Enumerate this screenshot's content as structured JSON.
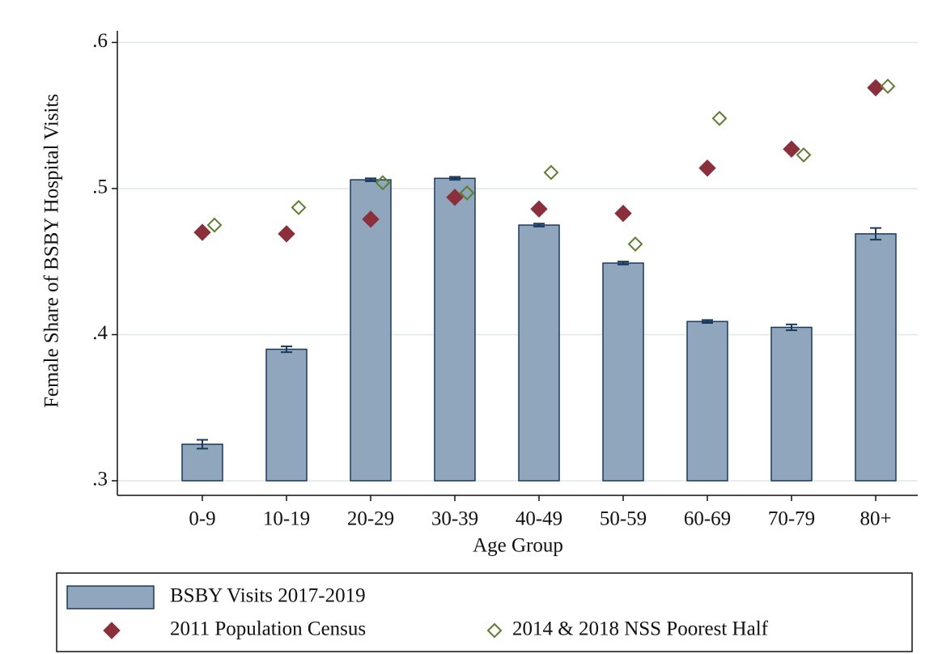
{
  "chart_data": {
    "type": "bar",
    "x_label": "Age Group",
    "y_label": "Female Share of BSBY Hospital Visits",
    "categories": [
      "0-9",
      "10-19",
      "20-29",
      "30-39",
      "40-49",
      "50-59",
      "60-69",
      "70-79",
      "80+"
    ],
    "series": [
      {
        "name": "BSBY Visits 2017-2019",
        "type": "bar",
        "color": "#8fa6bc",
        "values": [
          0.325,
          0.39,
          0.506,
          0.507,
          0.475,
          0.449,
          0.409,
          0.405,
          0.469
        ],
        "errors": [
          0.003,
          0.002,
          0.001,
          0.001,
          0.001,
          0.001,
          0.001,
          0.002,
          0.004
        ]
      },
      {
        "name": "2011 Population Census",
        "type": "scatter",
        "marker": "filled-diamond",
        "color": "#8b2f3a",
        "values": [
          0.47,
          0.469,
          0.479,
          0.494,
          0.486,
          0.483,
          0.514,
          0.527,
          0.569
        ]
      },
      {
        "name": "2014 & 2018 NSS Poorest Half",
        "type": "scatter",
        "marker": "hollow-diamond",
        "color": "#5a7f2d",
        "values": [
          0.475,
          0.487,
          0.504,
          0.497,
          0.511,
          0.462,
          0.548,
          0.523,
          0.57
        ]
      }
    ],
    "ylim": [
      0.29,
      0.608
    ],
    "yticks": [
      {
        "value": 0.3,
        "label": ".3"
      },
      {
        "value": 0.4,
        "label": ".4"
      },
      {
        "value": 0.5,
        "label": ".5"
      },
      {
        "value": 0.6,
        "label": ".6"
      }
    ],
    "grid": true
  }
}
